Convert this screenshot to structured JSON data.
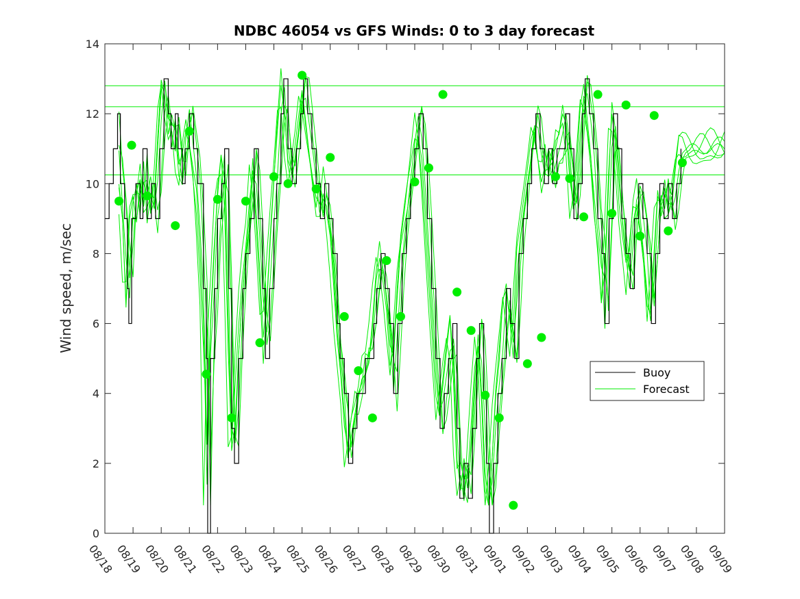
{
  "chart_data": {
    "type": "line",
    "title": "NDBC 46054 vs GFS Winds: 0 to 3 day forecast",
    "xlabel": "",
    "ylabel": "Wind speed, m/sec",
    "ylim": [
      0,
      14
    ],
    "yticks": [
      0,
      2,
      4,
      6,
      8,
      10,
      12,
      14
    ],
    "xlim": [
      0,
      22
    ],
    "xtick_labels": [
      "08/18",
      "08/19",
      "08/20",
      "08/21",
      "08/22",
      "08/23",
      "08/24",
      "08/25",
      "08/26",
      "08/27",
      "08/28",
      "08/29",
      "08/30",
      "08/31",
      "09/01",
      "09/02",
      "09/03",
      "09/04",
      "09/05",
      "09/06",
      "09/07",
      "09/08",
      "09/09"
    ],
    "legend": {
      "position": "lower-right",
      "entries": [
        "Buoy",
        "Forecast"
      ]
    },
    "reference_lines_y": [
      12.8,
      12.2,
      10.25
    ],
    "buoy_points": [
      [
        0,
        9
      ],
      [
        0.15,
        10
      ],
      [
        0.3,
        11
      ],
      [
        0.45,
        12
      ],
      [
        0.55,
        10
      ],
      [
        0.7,
        9
      ],
      [
        0.8,
        7
      ],
      [
        0.85,
        6
      ],
      [
        0.95,
        9
      ],
      [
        1.1,
        10
      ],
      [
        1.25,
        9
      ],
      [
        1.35,
        11
      ],
      [
        1.5,
        9
      ],
      [
        1.65,
        10
      ],
      [
        1.8,
        9
      ],
      [
        1.95,
        11
      ],
      [
        2.1,
        13
      ],
      [
        2.25,
        12
      ],
      [
        2.35,
        11
      ],
      [
        2.5,
        12
      ],
      [
        2.6,
        11
      ],
      [
        2.75,
        10
      ],
      [
        2.85,
        11
      ],
      [
        3,
        12
      ],
      [
        3.15,
        11
      ],
      [
        3.3,
        10
      ],
      [
        3.5,
        7
      ],
      [
        3.6,
        5
      ],
      [
        3.65,
        0
      ],
      [
        3.75,
        5
      ],
      [
        3.9,
        7
      ],
      [
        4,
        9
      ],
      [
        4.15,
        10
      ],
      [
        4.25,
        11
      ],
      [
        4.4,
        7
      ],
      [
        4.5,
        3
      ],
      [
        4.6,
        2
      ],
      [
        4.75,
        5
      ],
      [
        4.9,
        7
      ],
      [
        5,
        8
      ],
      [
        5.15,
        9
      ],
      [
        5.3,
        11
      ],
      [
        5.45,
        9
      ],
      [
        5.6,
        7
      ],
      [
        5.7,
        5
      ],
      [
        5.85,
        7
      ],
      [
        6,
        9
      ],
      [
        6.1,
        10
      ],
      [
        6.25,
        12
      ],
      [
        6.35,
        13
      ],
      [
        6.5,
        11
      ],
      [
        6.65,
        10
      ],
      [
        6.8,
        11
      ],
      [
        6.95,
        12
      ],
      [
        7.05,
        13
      ],
      [
        7.2,
        12
      ],
      [
        7.35,
        11
      ],
      [
        7.5,
        10
      ],
      [
        7.65,
        9
      ],
      [
        7.8,
        10
      ],
      [
        7.95,
        9
      ],
      [
        8.1,
        8
      ],
      [
        8.25,
        6
      ],
      [
        8.35,
        5
      ],
      [
        8.5,
        4
      ],
      [
        8.65,
        2
      ],
      [
        8.8,
        3
      ],
      [
        8.95,
        4
      ],
      [
        9.1,
        4
      ],
      [
        9.25,
        5
      ],
      [
        9.4,
        5
      ],
      [
        9.55,
        6
      ],
      [
        9.65,
        7
      ],
      [
        9.8,
        8
      ],
      [
        9.95,
        7
      ],
      [
        10.1,
        6
      ],
      [
        10.25,
        4
      ],
      [
        10.4,
        6
      ],
      [
        10.55,
        8
      ],
      [
        10.7,
        9
      ],
      [
        10.85,
        10
      ],
      [
        11,
        11
      ],
      [
        11.15,
        12
      ],
      [
        11.3,
        11
      ],
      [
        11.45,
        9
      ],
      [
        11.6,
        7
      ],
      [
        11.75,
        5
      ],
      [
        11.9,
        3
      ],
      [
        12.05,
        4
      ],
      [
        12.2,
        5
      ],
      [
        12.35,
        6
      ],
      [
        12.5,
        3
      ],
      [
        12.6,
        1
      ],
      [
        12.75,
        2
      ],
      [
        12.9,
        1
      ],
      [
        13.05,
        3
      ],
      [
        13.2,
        5
      ],
      [
        13.3,
        6
      ],
      [
        13.45,
        4
      ],
      [
        13.55,
        2
      ],
      [
        13.65,
        0
      ],
      [
        13.8,
        2
      ],
      [
        13.95,
        4
      ],
      [
        14.1,
        5
      ],
      [
        14.25,
        7
      ],
      [
        14.4,
        6
      ],
      [
        14.55,
        5
      ],
      [
        14.7,
        8
      ],
      [
        14.85,
        9
      ],
      [
        15,
        10
      ],
      [
        15.15,
        11
      ],
      [
        15.3,
        12
      ],
      [
        15.45,
        11
      ],
      [
        15.6,
        10
      ],
      [
        15.75,
        11
      ],
      [
        15.9,
        10
      ],
      [
        16.05,
        11
      ],
      [
        16.2,
        11
      ],
      [
        16.35,
        12
      ],
      [
        16.5,
        11
      ],
      [
        16.65,
        9
      ],
      [
        16.8,
        10
      ],
      [
        16.95,
        12
      ],
      [
        17.05,
        13
      ],
      [
        17.2,
        12
      ],
      [
        17.35,
        11
      ],
      [
        17.5,
        9
      ],
      [
        17.65,
        8
      ],
      [
        17.75,
        6
      ],
      [
        17.9,
        9
      ],
      [
        18.05,
        12
      ],
      [
        18.2,
        11
      ],
      [
        18.35,
        9
      ],
      [
        18.5,
        8
      ],
      [
        18.65,
        7
      ],
      [
        18.8,
        9
      ],
      [
        18.95,
        10
      ],
      [
        19.1,
        9
      ],
      [
        19.25,
        8
      ],
      [
        19.4,
        6
      ],
      [
        19.55,
        8
      ],
      [
        19.7,
        10
      ],
      [
        19.85,
        9
      ],
      [
        20,
        10
      ],
      [
        20.15,
        9
      ],
      [
        20.3,
        10
      ],
      [
        20.45,
        11
      ]
    ],
    "forecast_points": [
      [
        0.5,
        9.5
      ],
      [
        0.95,
        11.1
      ],
      [
        1.5,
        9.65
      ],
      [
        2.5,
        8.8
      ],
      [
        3,
        11.5
      ],
      [
        3.6,
        4.55
      ],
      [
        4,
        9.55
      ],
      [
        4.5,
        3.3
      ],
      [
        5,
        9.5
      ],
      [
        5.5,
        5.45
      ],
      [
        6,
        10.2
      ],
      [
        6.5,
        10
      ],
      [
        7,
        13.1
      ],
      [
        7.5,
        9.85
      ],
      [
        8,
        10.75
      ],
      [
        8.5,
        6.2
      ],
      [
        9,
        4.65
      ],
      [
        9.5,
        3.3
      ],
      [
        10,
        7.8
      ],
      [
        10.5,
        6.2
      ],
      [
        11,
        10.05
      ],
      [
        11.5,
        10.45
      ],
      [
        12,
        12.55
      ],
      [
        12.5,
        6.9
      ],
      [
        13,
        5.8
      ],
      [
        13.5,
        3.95
      ],
      [
        14,
        3.3
      ],
      [
        14.5,
        0.8
      ],
      [
        15,
        4.85
      ],
      [
        15.5,
        5.6
      ],
      [
        16,
        10.2
      ],
      [
        16.5,
        10.15
      ],
      [
        17,
        9.05
      ],
      [
        17.5,
        12.55
      ],
      [
        18,
        9.15
      ],
      [
        18.5,
        12.25
      ],
      [
        19,
        8.5
      ],
      [
        19.5,
        11.95
      ],
      [
        20,
        8.65
      ],
      [
        20.5,
        10.6
      ]
    ]
  },
  "colors": {
    "buoy": "#000000",
    "forecast": "#00ee00",
    "axes": "#262626"
  }
}
